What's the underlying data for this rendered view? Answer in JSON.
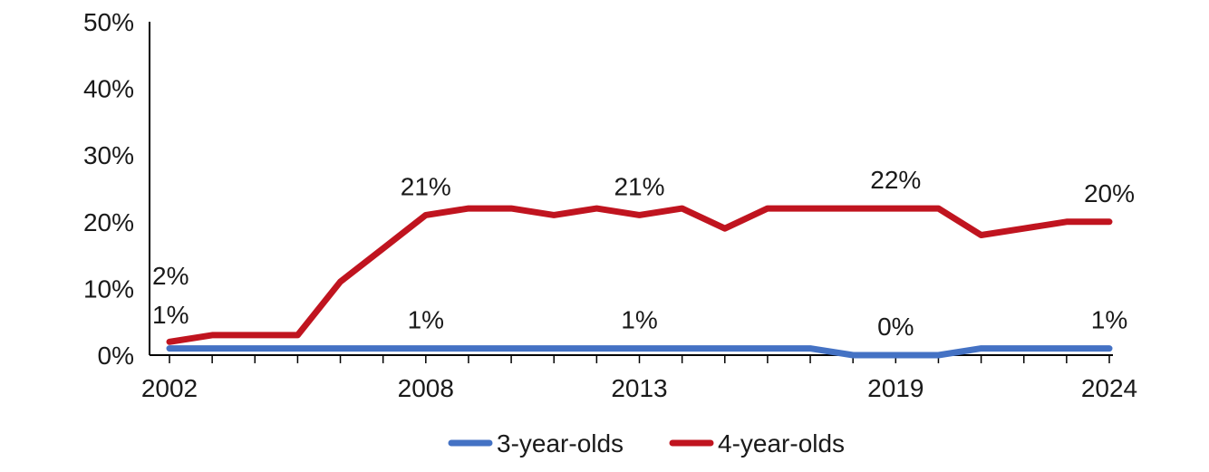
{
  "chart_data": {
    "type": "line",
    "title": "",
    "xlabel": "",
    "ylabel": "",
    "x": [
      2002,
      2003,
      2004,
      2005,
      2006,
      2007,
      2008,
      2009,
      2010,
      2011,
      2012,
      2013,
      2014,
      2015,
      2016,
      2017,
      2018,
      2019,
      2020,
      2021,
      2022,
      2023,
      2024
    ],
    "x_tick_labels": [
      "2002",
      "2008",
      "2013",
      "2019",
      "2024"
    ],
    "x_tick_values": [
      2002,
      2008,
      2013,
      2019,
      2024
    ],
    "ylim": [
      0,
      50
    ],
    "y_tick_values": [
      0,
      10,
      20,
      30,
      40,
      50
    ],
    "y_tick_labels": [
      "0%",
      "10%",
      "20%",
      "30%",
      "40%",
      "50%"
    ],
    "grid": false,
    "legend_position": "bottom",
    "series": [
      {
        "name": "3-year-olds",
        "color": "#4472C4",
        "values": [
          1,
          1,
          1,
          1,
          1,
          1,
          1,
          1,
          1,
          1,
          1,
          1,
          1,
          1,
          1,
          1,
          0,
          0,
          0,
          1,
          1,
          1,
          1
        ],
        "labels": [
          {
            "x": 2002,
            "text": "1%"
          },
          {
            "x": 2008,
            "text": "1%"
          },
          {
            "x": 2013,
            "text": "1%"
          },
          {
            "x": 2019,
            "text": "0%"
          },
          {
            "x": 2024,
            "text": "1%"
          }
        ]
      },
      {
        "name": "4-year-olds",
        "color": "#C0141F",
        "values": [
          2,
          3,
          3,
          3,
          11,
          16,
          21,
          22,
          22,
          21,
          22,
          21,
          22,
          19,
          22,
          22,
          22,
          22,
          22,
          18,
          19,
          20,
          20
        ],
        "labels": [
          {
            "x": 2002,
            "text": "2%"
          },
          {
            "x": 2008,
            "text": "21%"
          },
          {
            "x": 2013,
            "text": "21%"
          },
          {
            "x": 2019,
            "text": "22%"
          },
          {
            "x": 2024,
            "text": "20%"
          }
        ]
      }
    ]
  }
}
